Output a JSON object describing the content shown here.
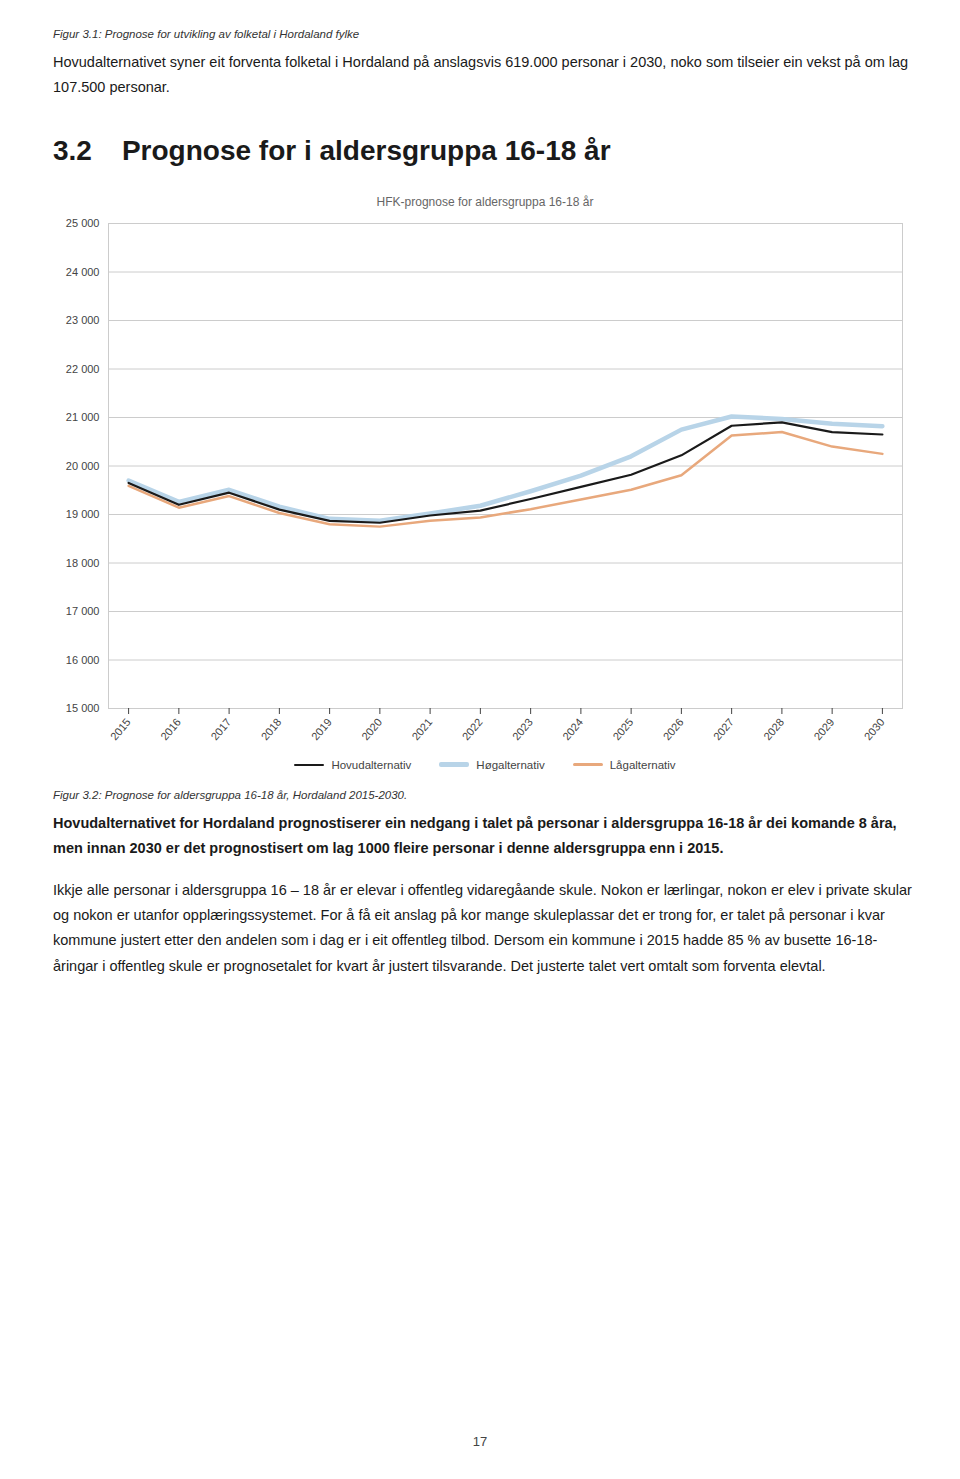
{
  "caption_top": "Figur 3.1: Prognose for utvikling av folketal i Hordaland fylke",
  "body_top": "Hovudalternativet syner eit forventa folketal i Hordaland på anslagsvis 619.000 personar i 2030, noko som tilseier ein vekst på om lag 107.500 personar.",
  "section_number": "3.2",
  "section_title": "Prognose for i aldersgruppa 16-18 år",
  "chart_data": {
    "type": "line",
    "title": "HFK-prognose for aldersgruppa 16-18 år",
    "x": [
      2015,
      2016,
      2017,
      2018,
      2019,
      2020,
      2021,
      2022,
      2023,
      2024,
      2025,
      2026,
      2027,
      2028,
      2029,
      2030
    ],
    "series": [
      {
        "name": "Hovudalternativ",
        "color": "#1a1a1a",
        "values": [
          19650,
          19200,
          19450,
          19100,
          18870,
          18830,
          18980,
          19080,
          19320,
          19570,
          19820,
          20220,
          20830,
          20900,
          20700,
          20650
        ]
      },
      {
        "name": "Høgalternativ",
        "color": "#b8d4e8",
        "values": [
          19700,
          19260,
          19510,
          19160,
          18910,
          18870,
          19020,
          19180,
          19480,
          19800,
          20200,
          20750,
          21020,
          20970,
          20870,
          20820
        ]
      },
      {
        "name": "Lågalternativ",
        "color": "#e8a87c",
        "values": [
          19590,
          19140,
          19380,
          19030,
          18800,
          18750,
          18870,
          18940,
          19110,
          19310,
          19510,
          19810,
          20630,
          20700,
          20400,
          20250
        ]
      }
    ],
    "xlim": [
      2014.6,
      2030.4
    ],
    "xticks": [
      2015,
      2016,
      2017,
      2018,
      2019,
      2020,
      2021,
      2022,
      2023,
      2024,
      2025,
      2026,
      2027,
      2028,
      2029,
      2030
    ],
    "ylim": [
      15000,
      25000
    ],
    "yticks": [
      {
        "value": 15000,
        "label": "15 000"
      },
      {
        "value": 16000,
        "label": "16 000"
      },
      {
        "value": 17000,
        "label": "17 000"
      },
      {
        "value": 18000,
        "label": "18 000"
      },
      {
        "value": 19000,
        "label": "19 000"
      },
      {
        "value": 20000,
        "label": "20 000"
      },
      {
        "value": 21000,
        "label": "21 000"
      },
      {
        "value": 22000,
        "label": "22 000"
      },
      {
        "value": 23000,
        "label": "23 000"
      },
      {
        "value": 24000,
        "label": "24 000"
      },
      {
        "value": 25000,
        "label": "25 000"
      }
    ],
    "grid": true,
    "legend": "bottom"
  },
  "caption_bottom": "Figur 3.2: Prognose for aldersgruppa 16-18 år, Hordaland 2015-2030.",
  "body_bottom_bold": "Hovudalternativet for Hordaland prognostiserer ein nedgang i talet på personar i aldersgruppa 16-18 år dei komande 8 åra, men innan 2030 er det prognostisert om lag 1000 fleire personar i denne aldersgruppa enn i 2015.",
  "body_bottom": "Ikkje alle personar i aldersgruppa 16 – 18 år er elevar i offentleg vidaregåande skule. Nokon er lærlingar, nokon er elev i private skular og nokon er utanfor opplæringssystemet. For å få eit anslag på kor mange skuleplassar det er trong for, er talet på personar i kvar kommune justert etter den andelen som i dag er i eit offentleg tilbod. Dersom ein kommune i 2015 hadde 85 % av busette 16-18-åringar i offentleg skule er prognosetalet for kvart år justert tilsvarande. Det justerte talet vert omtalt som forventa elevtal.",
  "page_number": "17"
}
